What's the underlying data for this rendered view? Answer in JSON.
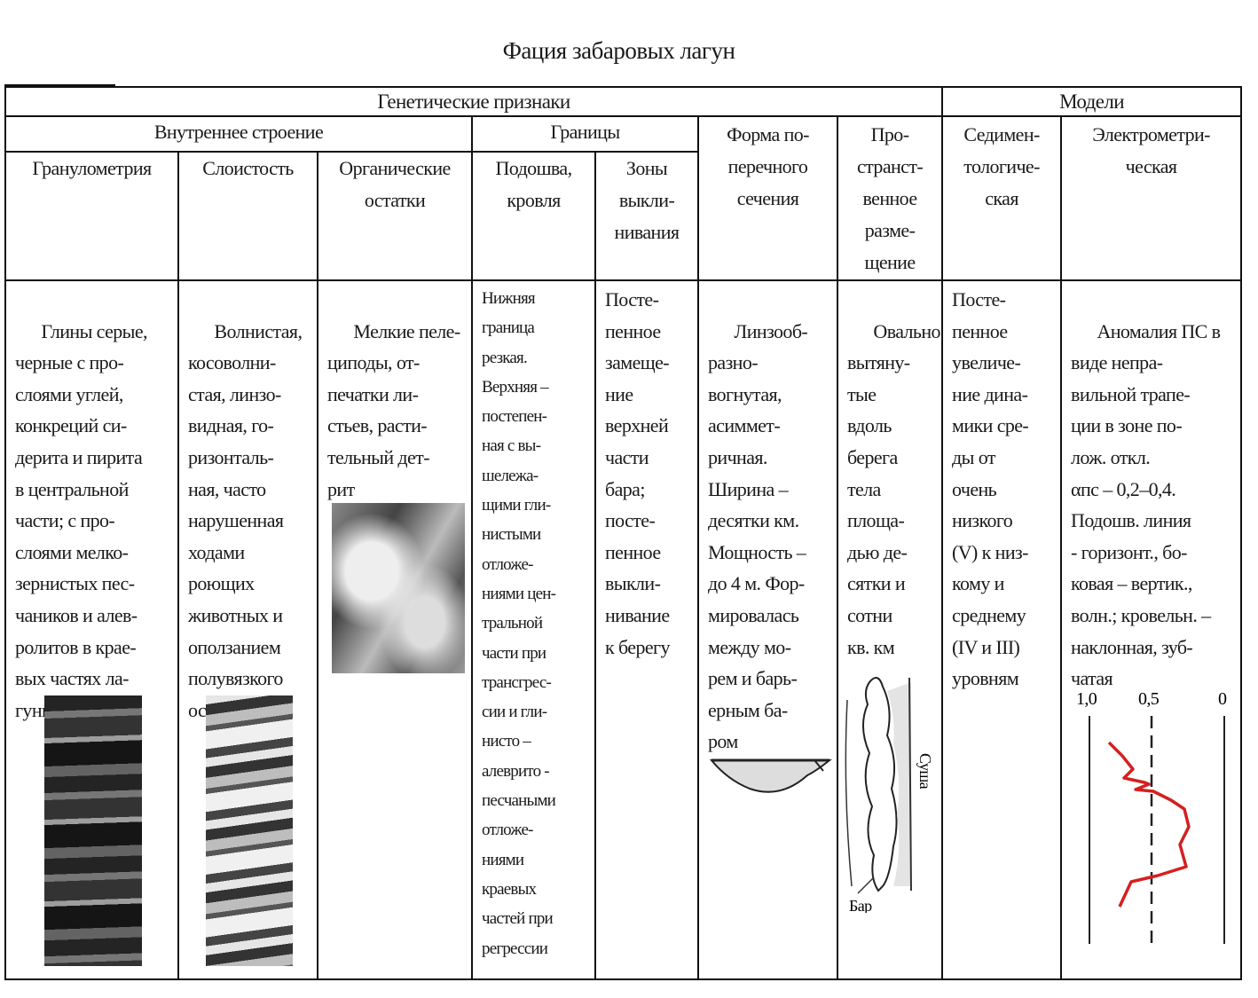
{
  "title": "Фация забаровых лагун",
  "header": {
    "genetic": "Генетические признаки",
    "models": "Модели",
    "internal": "Внутреннее строение",
    "boundaries": "Границы",
    "cross_section": "Форма по-\nперечного\nсечения",
    "spatial": "Про-\nстранст-\nвенное\nразме-\nщение",
    "sedimentological": "Седимен-\nтологиче-\nская",
    "electrometric": "Электрометри-\nческая",
    "granulometry": "Гранулометрия",
    "layering": "Слоистость",
    "organic": "Органические\nостатки",
    "sole_roof": "Подошва,\nкровля",
    "pinchout": "Зоны\nвыкли-\nнивания"
  },
  "body": {
    "granulometry": "Глины серые,\nчерные с про-\nслоями углей,\nконкреций си-\nдерита и пирита\nв центральной\nчасти; с про-\nслоями мелко-\nзернистых пес-\nчаников и алев-\nролитов в крае-\nвых частях ла-\nгуны",
    "layering": "Волнистая,\nкосоволни-\nстая, линзо-\nвидная, го-\nризонталь-\nная, часто\nнарушенная\nходами\nроющих\nживотных и\nоползанием\nполувязкого\nосадка",
    "organic": "Мелкие пеле-\nциподы, от-\nпечатки ли-\nстьев, расти-\nтельный дет-\nрит",
    "sole_roof": "Нижняя\nграница\nрезкая.\nВерхняя –\nпостепен-\nная с вы-\nшележа-\nщими гли-\nнистыми\nотложе-\nниями цен-\nтральной\nчасти при\nтрансгрес-\nсии и гли-\nнисто –\nалеврито -\nпесчаными\nотложе-\nниями\nкраевых\nчастей при\nрегрессии",
    "pinchout": "Посте-\nпенное\nзамеще-\nние\nверхней\nчасти\nбара;\nпосте-\nпенное\nвыкли-\nнивание\nк берегу",
    "cross_section": "Линзооб-\nразно-\nвогнутая,\nасиммет-\nричная.\nШирина –\nдесятки км.\nМощность –\nдо 4 м. Фор-\nмировалась\nмежду мо-\nрем и барь-\nерным ба-\nром",
    "spatial": "Овально\nвытяну-\nтые\nвдоль\nберега\nтела\nплоща-\nдью де-\nсятки и\nсотни\nкв. км",
    "sedimentological": "Посте-\nпенное\nувеличе-\nние дина-\nмики сре-\nды от\nочень\nнизкого\n(V) к низ-\nкому и\nсреднему\n(IV и III)\nуровням",
    "electrometric": "Аномалия ПС в\nвиде непра-\nвильной трапе-\nции в зоне по-\nлож. откл.\nαпс – 0,2–0,4.\nПодошв. линия\n- горизонт., бо-\nковая – вертик.,\nволн.; кровельн. –\nнаклонная, зуб-\nчатая"
  },
  "map_labels": {
    "land": "Суша",
    "bar": "Бар"
  },
  "sp_log": {
    "ticks": [
      "1,0",
      "0,5",
      "0"
    ],
    "curve_color": "#d42020"
  }
}
